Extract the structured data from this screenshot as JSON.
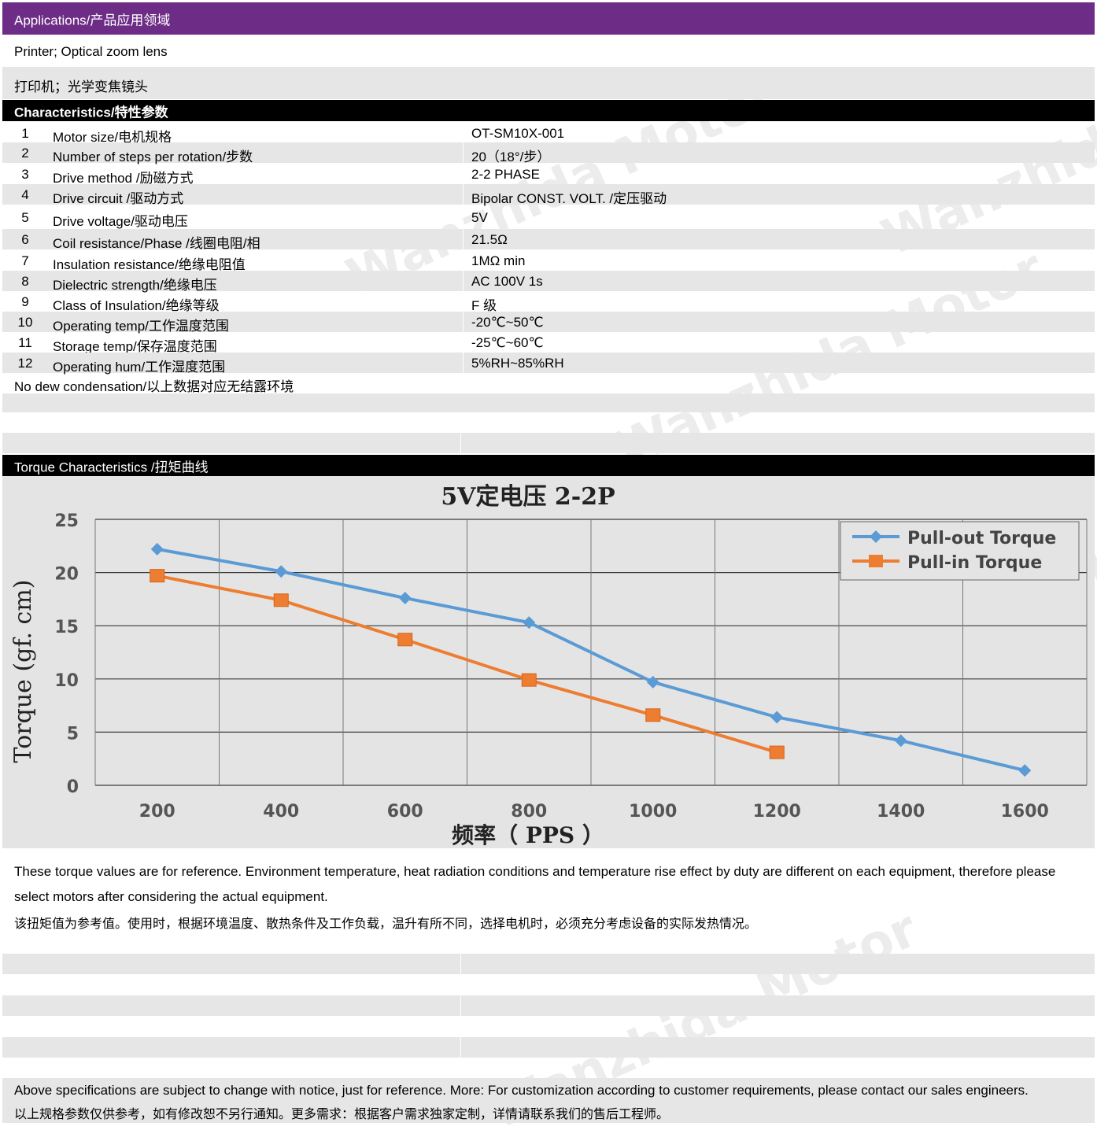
{
  "applications": {
    "header": "Applications/产品应用领域",
    "line_en": "Printer; Optical zoom lens",
    "line_cn": "打印机；光学变焦镜头"
  },
  "characteristics": {
    "header": "Characteristics/特性参数",
    "rows": [
      {
        "num": "1",
        "label": "Motor size/电机规格",
        "value": "OT-SM10X-001"
      },
      {
        "num": "2",
        "label": "Number of steps per rotation/步数",
        "value": "20（18°/步）"
      },
      {
        "num": "3",
        "label": "Drive method /励磁方式",
        "value": "2-2 PHASE"
      },
      {
        "num": "4",
        "label": "Drive circuit /驱动方式",
        "value": "Bipolar CONST. VOLT. /定压驱动"
      },
      {
        "num": "5",
        "label": "Drive voltage/驱动电压",
        "value": "5V"
      },
      {
        "num": "6",
        "label": "Coil resistance/Phase /线圈电阻/相",
        "value": "21.5Ω"
      },
      {
        "num": "7",
        "label": "Insulation resistance/绝缘电阻值",
        "value": "1MΩ min"
      },
      {
        "num": "8",
        "label": "Dielectric strength/绝缘电压",
        "value": "AC 100V 1s"
      },
      {
        "num": "9",
        "label": "Class of Insulation/绝缘等级",
        "value": "F 级"
      },
      {
        "num": "10",
        "label": "Operating temp/工作温度范围",
        "value": "-20℃~50℃"
      },
      {
        "num": "11",
        "label": "Storage temp/保存温度范围",
        "value": "-25℃~60℃"
      },
      {
        "num": "12",
        "label": "Operating hum/工作湿度范围",
        "value": "5%RH~85%RH"
      }
    ],
    "footnote": "No dew condensation/以上数据对应无结露环境"
  },
  "torque": {
    "header": "Torque Characteristics /扭矩曲线",
    "note_en_1": "These torque values are for reference. Environment temperature, heat radiation conditions and temperature rise effect by duty are different on each equipment, therefore please",
    "note_en_2": "select motors after considering the actual equipment.",
    "note_cn": "该扭矩值为参考值。使用时，根据环境温度、散热条件及工作负载，温升有所不同，选择电机时，必须充分考虑设备的实际发热情况。"
  },
  "footer": {
    "line_en": "Above specifications are subject to change with notice, just for reference. More: For customization according to customer requirements, please contact our sales engineers.",
    "line_cn": "以上规格参数仅供参考，如有修改恕不另行通知。更多需求：根据客户需求独家定制，详情请联系我们的售后工程师。"
  },
  "watermark": {
    "text": "Wanzhida Motor"
  },
  "chart_data": {
    "type": "line",
    "title": "5V定电压 2-2P",
    "xlabel": "频率（ PPS ）",
    "ylabel": "Torque (gf. cm)",
    "x_ticks": [
      "200",
      "400",
      "600",
      "800",
      "1000",
      "1200",
      "1400",
      "1600"
    ],
    "y_ticks": [
      "0",
      "5",
      "10",
      "15",
      "20",
      "25"
    ],
    "ylim": [
      0,
      25
    ],
    "xlim": [
      100,
      1700
    ],
    "grid": true,
    "legend_position": "top-right",
    "series": [
      {
        "name": "Pull-out Torque",
        "color": "#5b9bd5",
        "marker": "diamond",
        "x": [
          200,
          400,
          600,
          800,
          1000,
          1200,
          1400,
          1600
        ],
        "values": [
          22.2,
          20.1,
          17.6,
          15.3,
          9.7,
          6.4,
          4.2,
          1.4
        ]
      },
      {
        "name": "Pull-in Torque",
        "color": "#ed7d31",
        "marker": "square",
        "x": [
          200,
          400,
          600,
          800,
          1000,
          1200
        ],
        "values": [
          19.7,
          17.4,
          13.7,
          9.9,
          6.6,
          3.1
        ]
      }
    ]
  }
}
